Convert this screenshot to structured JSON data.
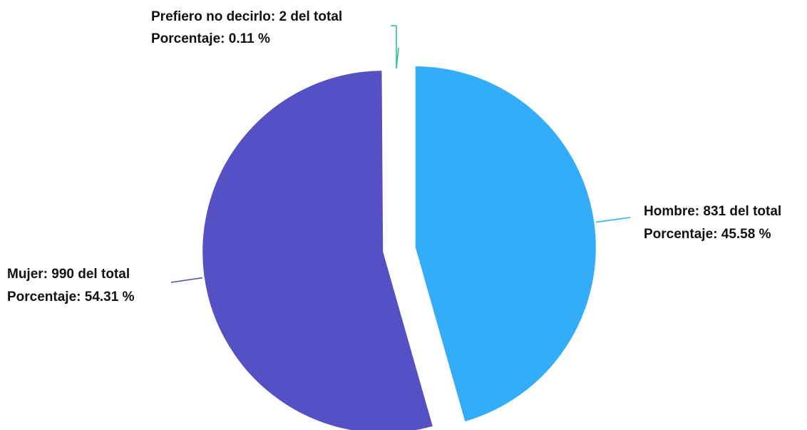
{
  "chart_data": {
    "type": "pie",
    "title": "",
    "slices": [
      {
        "name": "Hombre",
        "value": 831,
        "percent": 45.58,
        "color": "#33adfa",
        "label_line1": "Hombre: 831 del total",
        "label_line2": "Porcentaje: 45.58 %"
      },
      {
        "name": "Mujer",
        "value": 990,
        "percent": 54.31,
        "color": "#5551c4",
        "label_line1": "Mujer: 990 del total",
        "label_line2": "Porcentaje: 54.31 %"
      },
      {
        "name": "Prefiero no decirlo",
        "value": 2,
        "percent": 0.11,
        "color": "#2fc48a",
        "label_line1": "Prefiero no decirlo: 2 del total",
        "label_line2": "Porcentaje: 0.11 %"
      }
    ],
    "legend": "none",
    "exploded": true
  }
}
